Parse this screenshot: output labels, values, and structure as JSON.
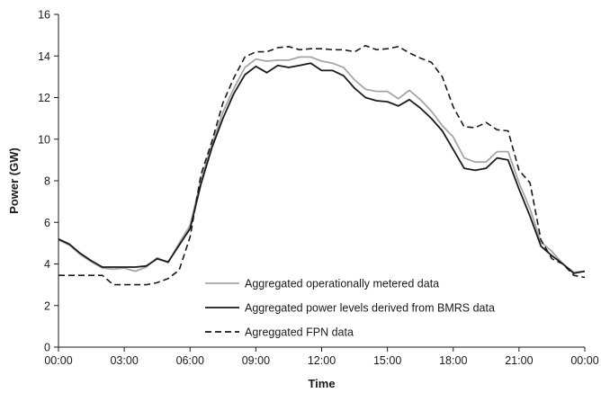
{
  "chart_data": {
    "type": "line",
    "xlabel": "Time",
    "ylabel": "Power (GW)",
    "ylim": [
      0,
      16
    ],
    "yticks": [
      0,
      2,
      4,
      6,
      8,
      10,
      12,
      14,
      16
    ],
    "xlim": [
      0,
      24
    ],
    "xticks": [
      0,
      3,
      6,
      9,
      12,
      15,
      18,
      21,
      24
    ],
    "xtick_labels": [
      "00:00",
      "03:00",
      "06:00",
      "09:00",
      "12:00",
      "15:00",
      "18:00",
      "21:00",
      "00:00"
    ],
    "grid": false,
    "legend_position": "lower-center",
    "x": [
      0,
      0.5,
      1,
      1.5,
      2,
      2.5,
      3,
      3.5,
      4,
      4.5,
      5,
      5.5,
      6,
      6.5,
      7,
      7.5,
      8,
      8.5,
      9,
      9.5,
      10,
      10.5,
      11,
      11.5,
      12,
      12.5,
      13,
      13.5,
      14,
      14.5,
      15,
      15.5,
      16,
      16.5,
      17,
      17.5,
      18,
      18.5,
      19,
      19.5,
      20,
      20.5,
      21,
      21.5,
      22,
      22.5,
      23,
      23.5,
      24
    ],
    "series": [
      {
        "name": "Aggregated operationally metered data",
        "color": "#a6a6a6",
        "dash": "solid",
        "values": [
          5.15,
          4.9,
          4.45,
          4.1,
          3.8,
          3.75,
          3.8,
          3.65,
          3.85,
          4.3,
          4.05,
          5.0,
          5.85,
          8.05,
          9.75,
          11.3,
          12.45,
          13.45,
          13.85,
          13.75,
          13.8,
          13.8,
          13.95,
          13.95,
          13.75,
          13.65,
          13.45,
          12.85,
          12.4,
          12.3,
          12.3,
          11.95,
          12.35,
          11.9,
          11.35,
          10.65,
          10.1,
          9.1,
          8.9,
          8.9,
          9.4,
          9.4,
          7.9,
          6.65,
          5.05,
          4.6,
          4.0,
          3.6,
          3.65
        ]
      },
      {
        "name": "Aggregated power levels derived from BMRS data",
        "color": "#1a1a1a",
        "dash": "solid",
        "values": [
          5.2,
          4.95,
          4.5,
          4.15,
          3.85,
          3.85,
          3.85,
          3.85,
          3.9,
          4.25,
          4.1,
          4.9,
          5.7,
          7.85,
          9.6,
          11.0,
          12.2,
          13.1,
          13.5,
          13.2,
          13.55,
          13.45,
          13.55,
          13.65,
          13.3,
          13.3,
          13.05,
          12.45,
          12.0,
          11.85,
          11.8,
          11.6,
          11.9,
          11.5,
          11.0,
          10.4,
          9.5,
          8.6,
          8.5,
          8.6,
          9.1,
          9.0,
          7.6,
          6.3,
          4.85,
          4.4,
          4.0,
          3.55,
          3.65
        ]
      },
      {
        "name": "Agreggated FPN data",
        "color": "#1a1a1a",
        "dash": "dashed",
        "values": [
          3.45,
          3.45,
          3.45,
          3.45,
          3.45,
          3.0,
          3.0,
          3.0,
          3.0,
          3.1,
          3.3,
          3.7,
          5.3,
          8.3,
          9.9,
          11.75,
          12.95,
          13.95,
          14.2,
          14.2,
          14.4,
          14.45,
          14.3,
          14.35,
          14.35,
          14.3,
          14.3,
          14.2,
          14.5,
          14.3,
          14.35,
          14.45,
          14.15,
          13.9,
          13.7,
          13.0,
          11.55,
          10.6,
          10.55,
          10.8,
          10.45,
          10.4,
          8.5,
          7.9,
          5.15,
          4.25,
          4.0,
          3.45,
          3.35
        ]
      }
    ]
  }
}
